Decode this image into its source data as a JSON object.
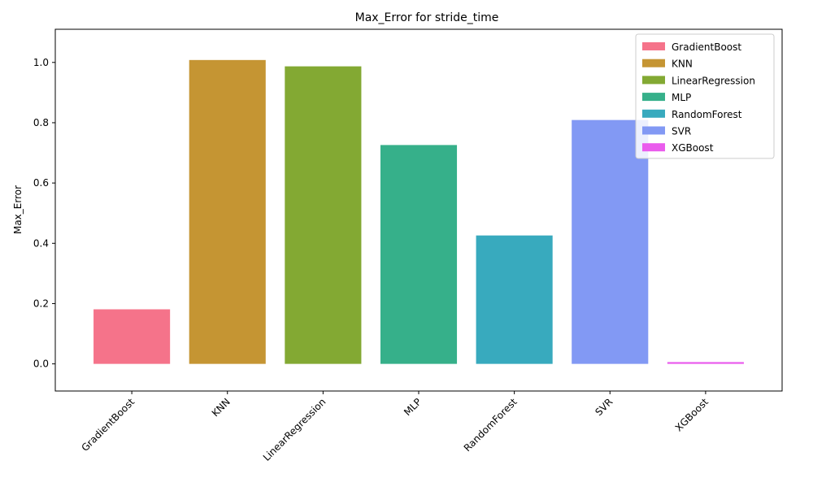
{
  "chart_data": {
    "type": "bar",
    "title": "Max_Error for stride_time",
    "xlabel": "",
    "ylabel": "Max_Error",
    "categories": [
      "GradientBoost",
      "KNN",
      "LinearRegression",
      "MLP",
      "RandomForest",
      "SVR",
      "XGBoost"
    ],
    "values": [
      0.181,
      1.008,
      0.987,
      0.726,
      0.426,
      0.809,
      0.006
    ],
    "colors": [
      "#f5738a",
      "#c59533",
      "#83a933",
      "#36b08a",
      "#38aabe",
      "#8299f4",
      "#ea5ced"
    ],
    "ylim": [
      -0.09,
      1.11
    ],
    "yticks": [
      0.0,
      0.2,
      0.4,
      0.6,
      0.8,
      1.0
    ],
    "ytick_labels": [
      "0.0",
      "0.2",
      "0.4",
      "0.6",
      "0.8",
      "1.0"
    ],
    "grid": false,
    "legend": {
      "placement": "top-right",
      "entries": [
        "GradientBoost",
        "KNN",
        "LinearRegression",
        "MLP",
        "RandomForest",
        "SVR",
        "XGBoost"
      ]
    }
  }
}
